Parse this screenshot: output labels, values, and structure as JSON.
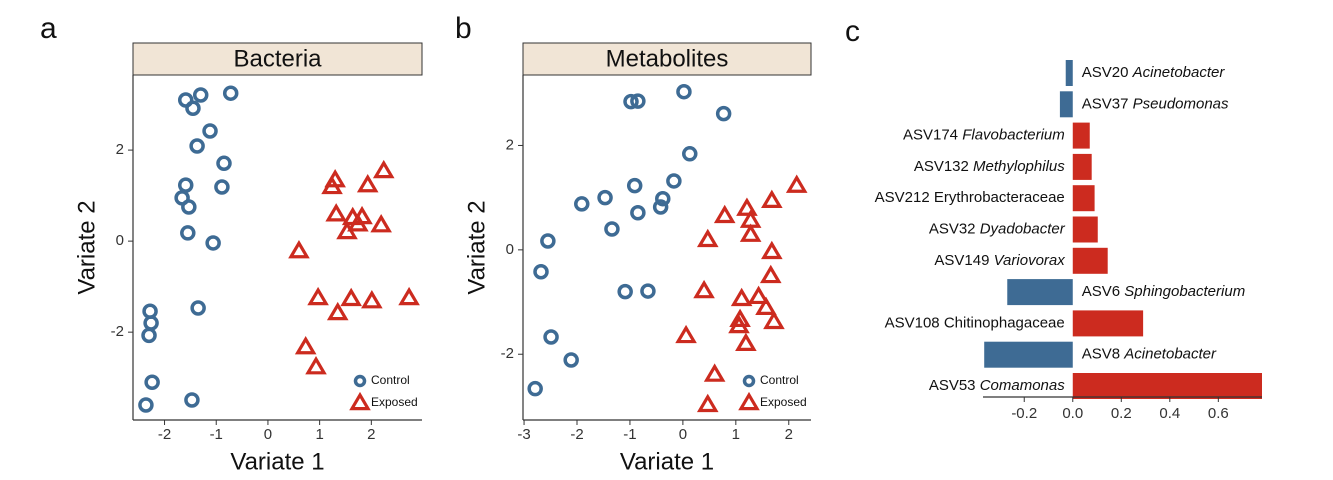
{
  "chart_data": [
    {
      "type": "scatter",
      "panel_label": "a",
      "title": "Bacteria",
      "xlabel": "Variate 1",
      "ylabel": "Variate 2",
      "xlim": [
        -2.61,
        2.98
      ],
      "ylim": [
        -3.93,
        3.65
      ],
      "xticks": [
        -2,
        -1,
        0,
        1,
        2
      ],
      "yticks": [
        -2,
        0,
        2
      ],
      "legend": "lower right",
      "series": [
        {
          "name": "Control",
          "color": "#3e6b94",
          "marker": "circle",
          "x": [
            -1.59,
            -1.3,
            -1.45,
            -0.72,
            -1.12,
            -1.37,
            -0.85,
            -0.89,
            -1.59,
            -1.66,
            -1.53,
            -1.55,
            -1.06,
            -1.35,
            -2.28,
            -2.26,
            -2.3,
            -2.24,
            -2.36,
            -1.47
          ],
          "values": [
            3.1,
            3.21,
            2.92,
            3.25,
            2.42,
            2.09,
            1.71,
            1.19,
            1.23,
            0.95,
            0.75,
            0.18,
            -0.04,
            -1.47,
            -1.54,
            -1.8,
            -2.07,
            -3.1,
            -3.6,
            -3.49
          ]
        },
        {
          "name": "Exposed",
          "color": "#cc2b1f",
          "marker": "triangle",
          "x": [
            1.3,
            1.24,
            2.24,
            1.93,
            1.32,
            1.64,
            1.82,
            1.74,
            1.53,
            2.19,
            0.6,
            0.97,
            1.61,
            1.35,
            2.01,
            2.73,
            0.73,
            0.93
          ],
          "values": [
            1.34,
            1.19,
            1.54,
            1.23,
            0.59,
            0.51,
            0.53,
            0.37,
            0.2,
            0.35,
            -0.22,
            -1.25,
            -1.27,
            -1.58,
            -1.32,
            -1.25,
            -2.33,
            -2.77
          ]
        }
      ]
    },
    {
      "type": "scatter",
      "panel_label": "b",
      "title": "Metabolites",
      "xlabel": "Variate 1",
      "ylabel": "Variate 2",
      "xlim": [
        -3.02,
        2.42
      ],
      "ylim": [
        -3.26,
        3.35
      ],
      "xticks": [
        -3,
        -2,
        -1,
        0,
        1,
        2
      ],
      "yticks": [
        -2,
        0,
        2
      ],
      "legend": "lower right",
      "series": [
        {
          "name": "Control",
          "color": "#3e6b94",
          "marker": "circle",
          "x": [
            -0.98,
            -0.85,
            0.02,
            0.77,
            0.13,
            -0.91,
            -0.17,
            -0.38,
            -0.42,
            -0.85,
            -1.47,
            -1.91,
            -1.34,
            -2.55,
            -2.68,
            -1.09,
            -0.66,
            -2.49,
            -2.11,
            -2.79
          ],
          "values": [
            2.84,
            2.85,
            3.03,
            2.61,
            1.84,
            1.23,
            1.32,
            0.98,
            0.82,
            0.71,
            1.0,
            0.88,
            0.4,
            0.17,
            -0.42,
            -0.8,
            -0.79,
            -1.67,
            -2.11,
            -2.66
          ]
        },
        {
          "name": "Exposed",
          "color": "#cc2b1f",
          "marker": "triangle",
          "x": [
            2.15,
            0.79,
            1.21,
            1.68,
            1.28,
            1.28,
            0.47,
            1.68,
            1.66,
            0.4,
            1.11,
            1.43,
            1.57,
            1.08,
            1.06,
            1.72,
            1.19,
            0.06,
            0.6,
            0.47
          ],
          "values": [
            1.23,
            0.65,
            0.79,
            0.94,
            0.56,
            0.29,
            0.19,
            -0.04,
            -0.5,
            -0.79,
            -0.94,
            -0.9,
            -1.11,
            -1.34,
            -1.46,
            -1.38,
            -1.8,
            -1.65,
            -2.39,
            -2.97
          ]
        }
      ]
    },
    {
      "type": "barh",
      "panel_label": "c",
      "categories": [
        "ASV20 Acinetobacter",
        "ASV37 Pseudomonas",
        "ASV174 Flavobacterium",
        "ASV132 Methylophilus",
        "ASV212 Erythrobacteraceae",
        "ASV32 Dyadobacter",
        "ASV149 Variovorax",
        "ASV6 Sphingobacterium",
        "ASV108 Chitinophagaceae",
        "ASV8 Acinetobacter",
        "ASV53 Comamonas"
      ],
      "italic_taxon": [
        true,
        true,
        true,
        true,
        false,
        true,
        true,
        true,
        false,
        true,
        true
      ],
      "values": [
        -0.029,
        -0.053,
        0.07,
        0.078,
        0.09,
        0.103,
        0.144,
        -0.27,
        0.29,
        -0.365,
        0.78
      ],
      "positive_color": "#cc2b1f",
      "negative_color": "#3e6b94",
      "xlim": [
        -0.37,
        0.78
      ],
      "xticks": [
        -0.2,
        {
          "value": 0,
          "label": "0.0"
        },
        0.2,
        0.4,
        0.6
      ]
    }
  ]
}
